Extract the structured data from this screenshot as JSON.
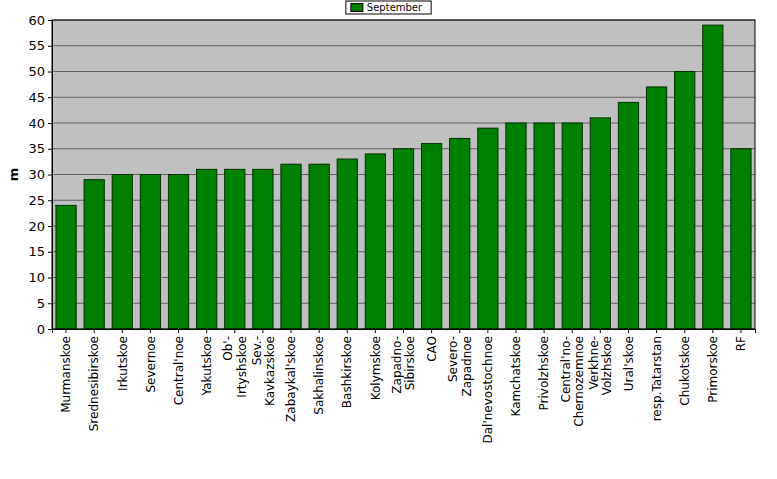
{
  "chart_data": {
    "type": "bar",
    "y_label": "m",
    "categories": [
      "Murmanskoe",
      "Srednesibirskoe",
      "Irkutskoe",
      "Severnoe",
      "Central'noe",
      "Yakutskoe",
      "Ob'-\nIrtyshskoe",
      "Sev.-\nKavkazskoe",
      "Zabaykal'skoe",
      "Sakhalinskoe",
      "Bashkirskoe",
      "Kolymskoe",
      "Zapadno-\nSibirskoe",
      "CAO",
      "Severo-\nZapadnoe",
      "Dal'nevostochnoe",
      "Kamchatskoe",
      "Privolzhskoe",
      "Central'no-\nChernozemnoe",
      "Verkhne-\nVolzhskoe",
      "Ural'skoe",
      "resp.Tatarstan",
      "Chukotskoe",
      "Primorskoe",
      "RF"
    ],
    "series": [
      {
        "name": "September",
        "color": "#008000",
        "values": [
          24,
          29,
          30,
          30,
          30,
          31,
          31,
          31,
          32,
          32,
          33,
          34,
          35,
          36,
          37,
          39,
          40,
          40,
          40,
          41,
          44,
          47,
          50,
          59,
          35
        ]
      }
    ],
    "ylim": [
      0,
      60
    ],
    "yticks": [
      0,
      5,
      10,
      15,
      20,
      25,
      30,
      35,
      40,
      45,
      50,
      55,
      60
    ],
    "grid": true,
    "legend": "top"
  }
}
